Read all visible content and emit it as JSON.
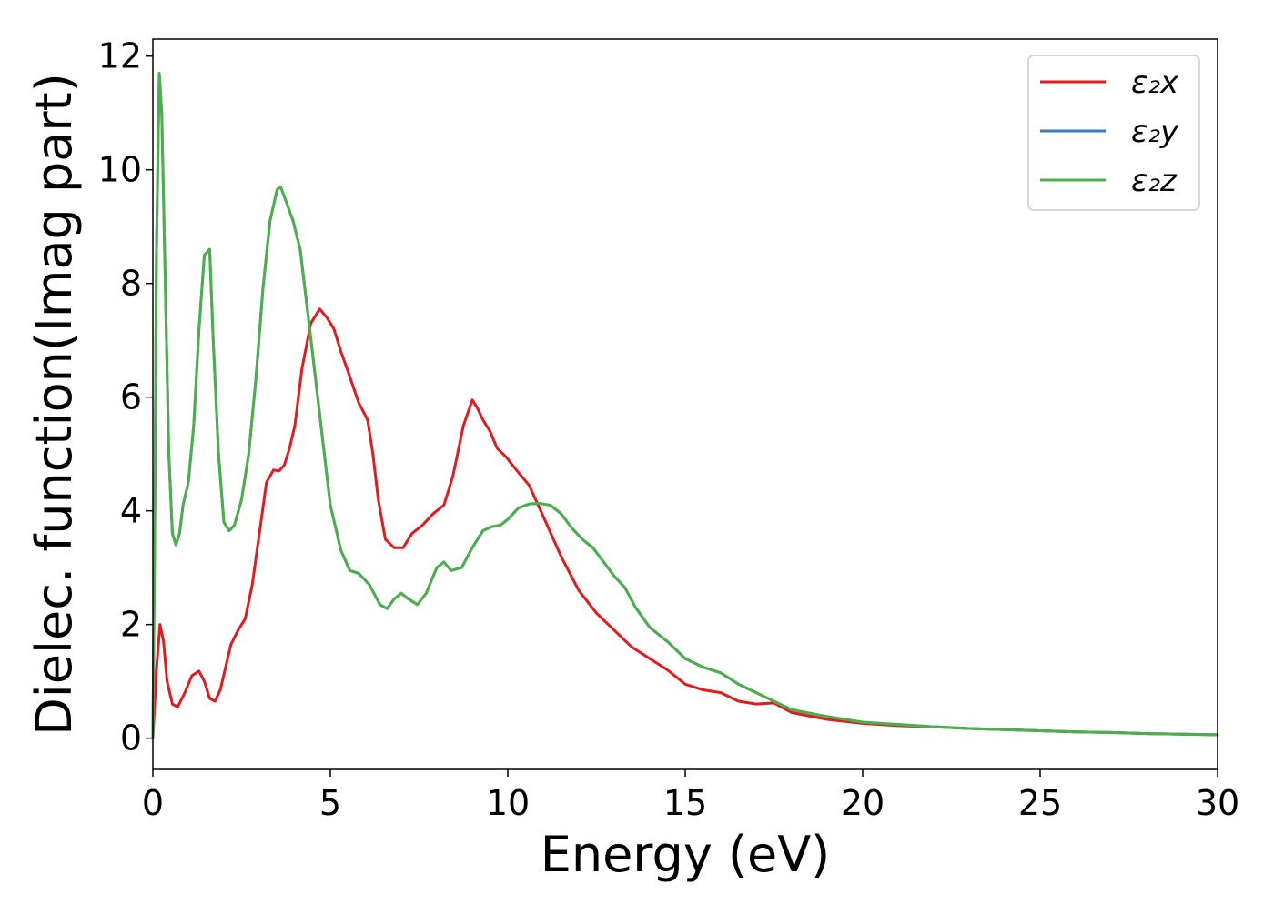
{
  "chart_data": {
    "type": "line",
    "title": "",
    "xlabel": "Energy (eV)",
    "ylabel": "Dielec. function(Imag part)",
    "xlim": [
      0,
      30
    ],
    "ylim": [
      -0.55,
      12.3
    ],
    "xticks": [
      0,
      5,
      10,
      15,
      20,
      25,
      30
    ],
    "yticks": [
      0,
      2,
      4,
      6,
      8,
      10,
      12
    ],
    "grid": false,
    "legend_position": "top-right",
    "series": [
      {
        "name": "ε₂x",
        "color": "#e41a1c",
        "x": [
          0,
          0.1,
          0.2,
          0.3,
          0.4,
          0.55,
          0.7,
          0.9,
          1.1,
          1.3,
          1.45,
          1.6,
          1.75,
          1.9,
          2.05,
          2.2,
          2.4,
          2.6,
          2.8,
          3.0,
          3.2,
          3.4,
          3.55,
          3.7,
          3.85,
          4.0,
          4.2,
          4.45,
          4.7,
          4.9,
          5.1,
          5.3,
          5.5,
          5.8,
          6.05,
          6.2,
          6.35,
          6.55,
          6.8,
          7.05,
          7.3,
          7.6,
          7.9,
          8.2,
          8.45,
          8.75,
          9.0,
          9.15,
          9.3,
          9.5,
          9.7,
          9.95,
          10.2,
          10.6,
          11.0,
          11.5,
          12.0,
          12.5,
          13.0,
          13.5,
          14.0,
          14.5,
          15.0,
          15.5,
          16.0,
          16.5,
          17.0,
          17.5,
          18.0,
          19.0,
          20.0,
          21.0,
          22.0,
          23.0,
          24.0,
          25.0,
          26.0,
          27.0,
          28.0,
          29.0,
          30.0
        ],
        "y": [
          0,
          1.2,
          2.0,
          1.7,
          1.0,
          0.6,
          0.55,
          0.8,
          1.1,
          1.18,
          1.0,
          0.7,
          0.65,
          0.85,
          1.25,
          1.65,
          1.9,
          2.1,
          2.7,
          3.6,
          4.5,
          4.72,
          4.7,
          4.8,
          5.1,
          5.5,
          6.5,
          7.3,
          7.55,
          7.4,
          7.2,
          6.8,
          6.45,
          5.9,
          5.6,
          5.0,
          4.2,
          3.5,
          3.35,
          3.35,
          3.6,
          3.75,
          3.95,
          4.1,
          4.6,
          5.5,
          5.95,
          5.8,
          5.6,
          5.4,
          5.1,
          4.95,
          4.75,
          4.45,
          3.9,
          3.2,
          2.6,
          2.2,
          1.9,
          1.6,
          1.4,
          1.2,
          0.95,
          0.85,
          0.8,
          0.65,
          0.6,
          0.62,
          0.45,
          0.33,
          0.26,
          0.22,
          0.2,
          0.17,
          0.15,
          0.13,
          0.11,
          0.1,
          0.08,
          0.07,
          0.06
        ]
      },
      {
        "name": "ε₂y",
        "color": "#377eb8",
        "x": [
          0,
          0.05,
          0.1,
          0.18,
          0.25,
          0.35,
          0.45,
          0.55,
          0.65,
          0.75,
          0.85,
          1.0,
          1.15,
          1.3,
          1.45,
          1.6,
          1.7,
          1.85,
          2.0,
          2.15,
          2.3,
          2.5,
          2.7,
          2.9,
          3.1,
          3.3,
          3.5,
          3.6,
          3.75,
          3.95,
          4.15,
          4.4,
          4.7,
          5.0,
          5.3,
          5.55,
          5.8,
          6.1,
          6.4,
          6.6,
          6.8,
          7.0,
          7.2,
          7.45,
          7.7,
          8.0,
          8.2,
          8.4,
          8.7,
          9.0,
          9.3,
          9.55,
          9.8,
          10.0,
          10.3,
          10.6,
          10.9,
          11.2,
          11.5,
          11.8,
          12.1,
          12.4,
          12.7,
          13.0,
          13.3,
          13.6,
          14.0,
          14.5,
          15.0,
          15.5,
          16.0,
          16.5,
          17.0,
          17.5,
          18.0,
          19.0,
          20.0,
          21.0,
          22.0,
          23.0,
          24.0,
          25.0,
          26.0,
          27.0,
          28.0,
          29.0,
          30.0
        ],
        "y": [
          0,
          3.5,
          8.5,
          11.7,
          11.0,
          8.0,
          5.0,
          3.6,
          3.4,
          3.6,
          4.1,
          4.5,
          5.5,
          7.2,
          8.5,
          8.6,
          7.0,
          5.0,
          3.8,
          3.65,
          3.75,
          4.2,
          5.0,
          6.3,
          7.9,
          9.1,
          9.65,
          9.7,
          9.45,
          9.1,
          8.6,
          7.3,
          5.7,
          4.1,
          3.3,
          2.95,
          2.9,
          2.7,
          2.35,
          2.28,
          2.45,
          2.55,
          2.45,
          2.35,
          2.55,
          3.0,
          3.1,
          2.95,
          3.0,
          3.35,
          3.65,
          3.72,
          3.75,
          3.85,
          4.05,
          4.12,
          4.13,
          4.1,
          3.95,
          3.7,
          3.5,
          3.35,
          3.1,
          2.85,
          2.65,
          2.3,
          1.95,
          1.7,
          1.4,
          1.25,
          1.15,
          0.95,
          0.8,
          0.65,
          0.5,
          0.38,
          0.28,
          0.24,
          0.2,
          0.17,
          0.15,
          0.13,
          0.11,
          0.1,
          0.08,
          0.07,
          0.06
        ]
      },
      {
        "name": "ε₂z",
        "color": "#4daf4a",
        "x": [
          0,
          0.05,
          0.1,
          0.18,
          0.25,
          0.35,
          0.45,
          0.55,
          0.65,
          0.75,
          0.85,
          1.0,
          1.15,
          1.3,
          1.45,
          1.6,
          1.7,
          1.85,
          2.0,
          2.15,
          2.3,
          2.5,
          2.7,
          2.9,
          3.1,
          3.3,
          3.5,
          3.6,
          3.75,
          3.95,
          4.15,
          4.4,
          4.7,
          5.0,
          5.3,
          5.55,
          5.8,
          6.1,
          6.4,
          6.6,
          6.8,
          7.0,
          7.2,
          7.45,
          7.7,
          8.0,
          8.2,
          8.4,
          8.7,
          9.0,
          9.3,
          9.55,
          9.8,
          10.0,
          10.3,
          10.6,
          10.9,
          11.2,
          11.5,
          11.8,
          12.1,
          12.4,
          12.7,
          13.0,
          13.3,
          13.6,
          14.0,
          14.5,
          15.0,
          15.5,
          16.0,
          16.5,
          17.0,
          17.5,
          18.0,
          19.0,
          20.0,
          21.0,
          22.0,
          23.0,
          24.0,
          25.0,
          26.0,
          27.0,
          28.0,
          29.0,
          30.0
        ],
        "y": [
          0,
          3.5,
          8.5,
          11.7,
          11.0,
          8.0,
          5.0,
          3.6,
          3.4,
          3.6,
          4.1,
          4.5,
          5.5,
          7.2,
          8.5,
          8.6,
          7.0,
          5.0,
          3.8,
          3.65,
          3.75,
          4.2,
          5.0,
          6.3,
          7.9,
          9.1,
          9.65,
          9.7,
          9.45,
          9.1,
          8.6,
          7.3,
          5.7,
          4.1,
          3.3,
          2.95,
          2.9,
          2.7,
          2.35,
          2.28,
          2.45,
          2.55,
          2.45,
          2.35,
          2.55,
          3.0,
          3.1,
          2.95,
          3.0,
          3.35,
          3.65,
          3.72,
          3.75,
          3.85,
          4.05,
          4.12,
          4.13,
          4.1,
          3.95,
          3.7,
          3.5,
          3.35,
          3.1,
          2.85,
          2.65,
          2.3,
          1.95,
          1.7,
          1.4,
          1.25,
          1.15,
          0.95,
          0.8,
          0.65,
          0.5,
          0.38,
          0.28,
          0.24,
          0.2,
          0.17,
          0.15,
          0.13,
          0.11,
          0.1,
          0.08,
          0.07,
          0.06
        ]
      }
    ]
  }
}
